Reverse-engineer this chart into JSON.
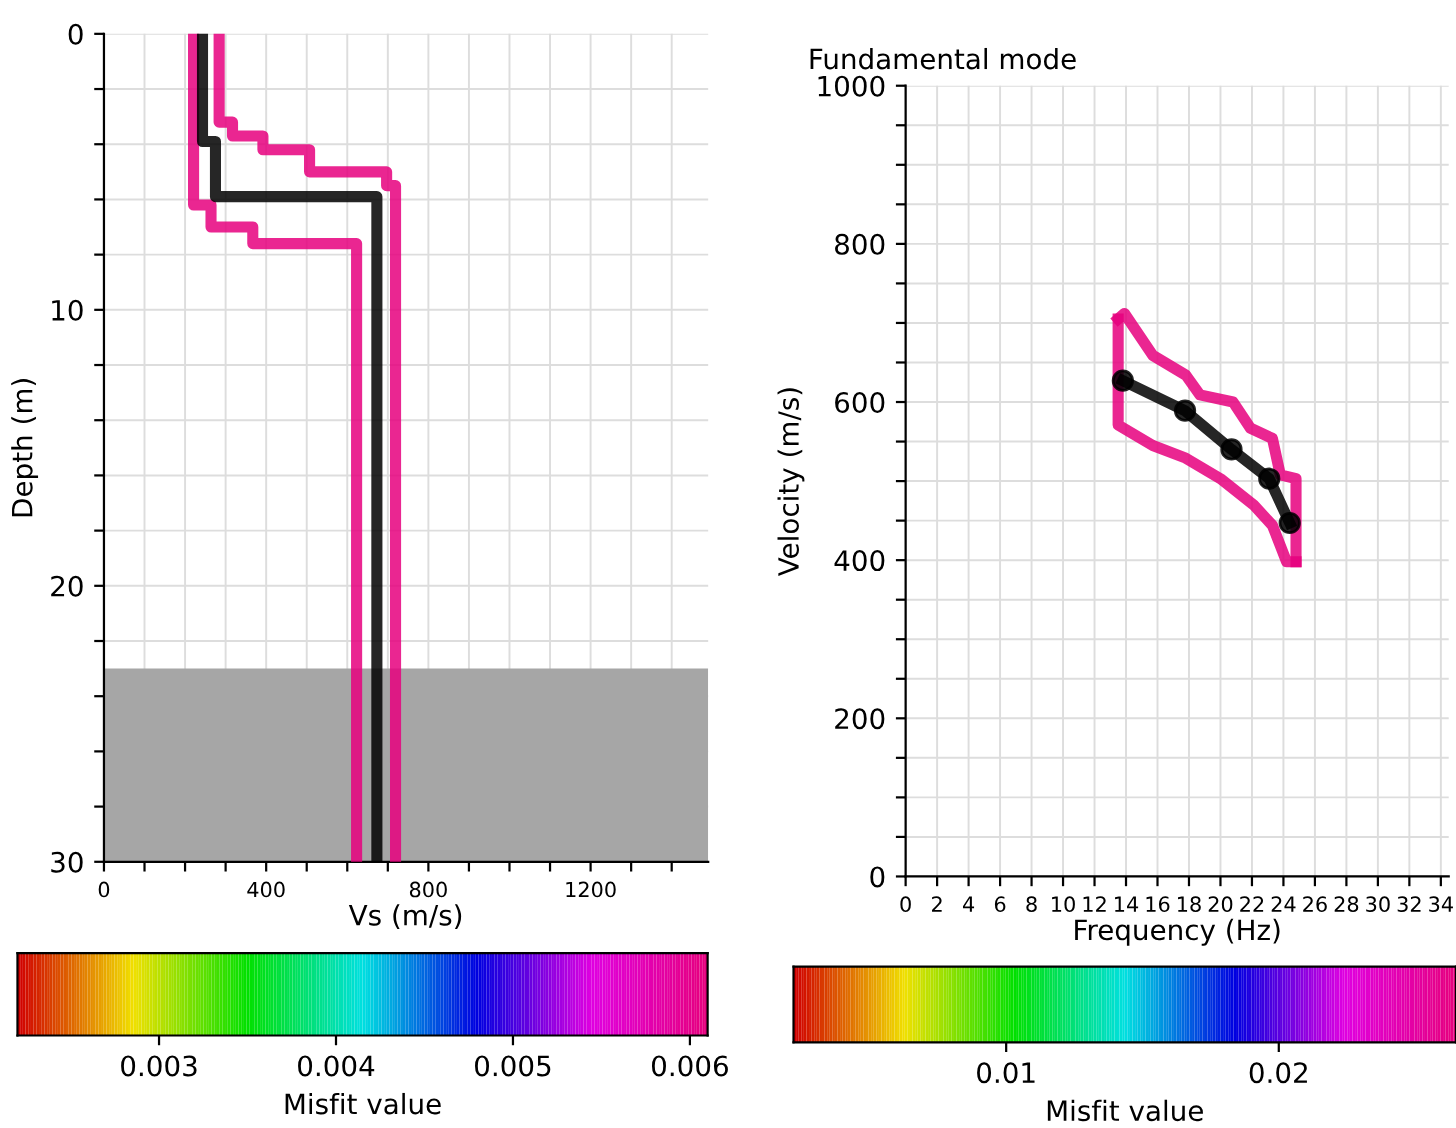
{
  "chart_data": [
    {
      "type": "line",
      "xlabel": "Vs (m/s)",
      "ylabel": "Depth (m)",
      "clabel": "Misfit value",
      "xlim": [
        0,
        1490
      ],
      "ylim": [
        30,
        0
      ],
      "xticks": [
        0,
        {
          "value": 100,
          "label": null
        },
        {
          "value": 200,
          "label": null
        },
        {
          "value": 300,
          "label": null
        },
        400,
        {
          "value": 500,
          "label": null
        },
        {
          "value": 600,
          "label": null
        },
        {
          "value": 700,
          "label": null
        },
        800,
        {
          "value": 900,
          "label": null
        },
        {
          "value": 1000,
          "label": null
        },
        {
          "value": 1100,
          "label": null
        },
        1200,
        {
          "value": 1300,
          "label": null
        },
        {
          "value": 1400,
          "label": null
        }
      ],
      "yticks": [
        0,
        {
          "value": 2,
          "label": null
        },
        {
          "value": 4,
          "label": null
        },
        {
          "value": 6,
          "label": null
        },
        {
          "value": 8,
          "label": null
        },
        10,
        {
          "value": 12,
          "label": null
        },
        {
          "value": 14,
          "label": null
        },
        {
          "value": 16,
          "label": null
        },
        {
          "value": 18,
          "label": null
        },
        20,
        {
          "value": 22,
          "label": null
        },
        {
          "value": 24,
          "label": null
        },
        {
          "value": 26,
          "label": null
        },
        {
          "value": 28,
          "label": null
        },
        30
      ],
      "clim": [
        0.0022,
        0.0061
      ],
      "cticks": [
        0.003,
        0.004,
        0.005,
        0.006
      ],
      "grid": true,
      "marker": "none",
      "line_style": "solid",
      "bands": [
        {
          "axis": "y",
          "from": 23,
          "to": 30,
          "color": "#a6a6a6"
        }
      ],
      "series": [
        {
          "color": "#e6007e",
          "x": [
            284,
            284,
            317,
            317,
            392,
            392,
            507,
            507,
            697,
            697,
            719,
            719
          ],
          "values": [
            0,
            3.2,
            3.2,
            3.7,
            3.7,
            4.2,
            4.2,
            5.0,
            5.0,
            5.5,
            5.5,
            30
          ]
        },
        {
          "color": "#e6007e",
          "x": [
            221,
            221,
            264,
            264,
            367,
            367,
            623,
            623
          ],
          "values": [
            0,
            6.2,
            6.2,
            7.0,
            7.0,
            7.6,
            7.6,
            30
          ]
        },
        {
          "color": "#000000",
          "x": [
            243,
            243,
            275,
            275,
            673,
            673
          ],
          "values": [
            0,
            3.9,
            3.9,
            5.9,
            5.9,
            30
          ]
        }
      ]
    },
    {
      "type": "line",
      "title": "Fundamental mode",
      "xlabel": "Frequency (Hz)",
      "ylabel": "Velocity (m/s)",
      "clabel": "Misfit value",
      "xlim": [
        0,
        34.5
      ],
      "ylim": [
        0,
        1000
      ],
      "xticks": [
        0,
        2,
        4,
        6,
        8,
        10,
        12,
        14,
        16,
        18,
        20,
        22,
        24,
        26,
        28,
        30,
        32,
        34
      ],
      "yticks": [
        0,
        {
          "value": 50,
          "label": null
        },
        {
          "value": 100,
          "label": null
        },
        {
          "value": 150,
          "label": null
        },
        200,
        {
          "value": 250,
          "label": null
        },
        {
          "value": 300,
          "label": null
        },
        {
          "value": 350,
          "label": null
        },
        400,
        {
          "value": 450,
          "label": null
        },
        {
          "value": 500,
          "label": null
        },
        {
          "value": 550,
          "label": null
        },
        600,
        {
          "value": 650,
          "label": null
        },
        {
          "value": 700,
          "label": null
        },
        {
          "value": 750,
          "label": null
        },
        800,
        {
          "value": 850,
          "label": null
        },
        {
          "value": 900,
          "label": null
        },
        {
          "value": 950,
          "label": null
        },
        1000
      ],
      "clim": [
        0.0022,
        0.0265
      ],
      "cticks": [
        0.01,
        0.02
      ],
      "grid": true,
      "line_style": "solid",
      "series": [
        {
          "color": "#e6007e",
          "marker": "none",
          "x": [
            13.5,
            13.9,
            15.7,
            17.8,
            18.7,
            20.8,
            21.9,
            23.3,
            23.8,
            24.8,
            24.8
          ],
          "values": [
            705,
            712,
            659,
            634,
            609,
            600,
            567,
            554,
            508,
            503,
            398
          ]
        },
        {
          "color": "#e6007e",
          "marker": "none",
          "x": [
            13.5,
            13.5,
            15.7,
            17.8,
            20.0,
            22.1,
            23.3,
            24.2,
            24.8
          ],
          "values": [
            705,
            571,
            545,
            529,
            503,
            470,
            444,
            398,
            398
          ]
        },
        {
          "color": "#000000",
          "marker": "circle",
          "x": [
            13.8,
            17.75,
            20.7,
            23.1,
            24.4
          ],
          "values": [
            627,
            589,
            540,
            503,
            447
          ]
        }
      ]
    }
  ]
}
